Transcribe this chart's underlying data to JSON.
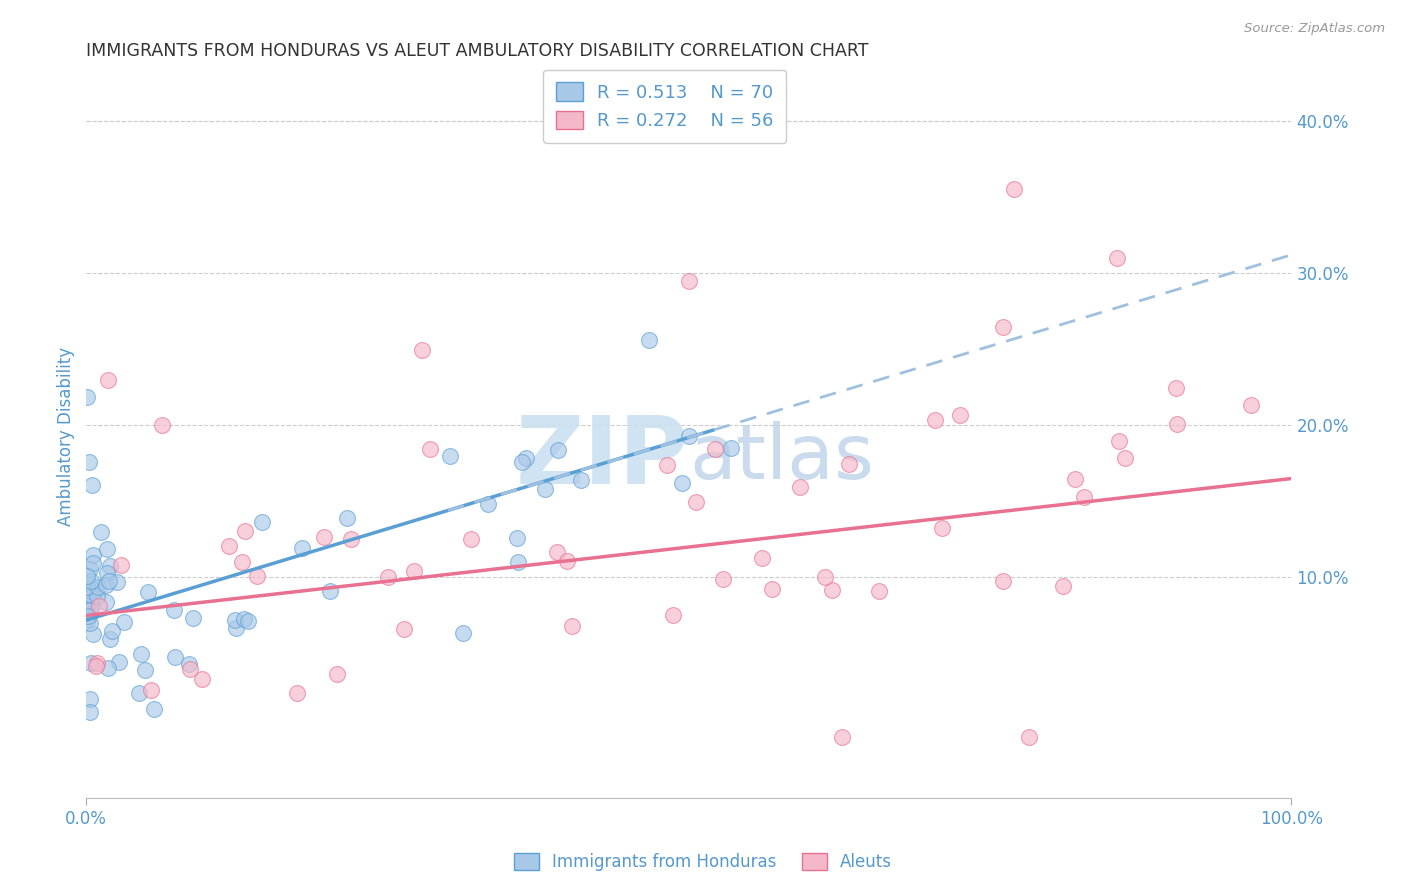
{
  "title": "IMMIGRANTS FROM HONDURAS VS ALEUT AMBULATORY DISABILITY CORRELATION CHART",
  "source": "Source: ZipAtlas.com",
  "ylabel": "Ambulatory Disability",
  "xlim": [
    0.0,
    1.0
  ],
  "ylim": [
    -0.045,
    0.43
  ],
  "color_blue_fill": "#a8c8e8",
  "color_blue_edge": "#5a9fd4",
  "color_pink_fill": "#f4b8c8",
  "color_pink_edge": "#e87090",
  "color_trendline_blue_solid": "#5a9fd4",
  "color_trendline_blue_dash": "#a0c0e0",
  "color_trendline_pink": "#e87090",
  "color_grid": "#cccccc",
  "color_title": "#333333",
  "color_axis_blue": "#5599cc",
  "color_watermark": "#c8dff0",
  "background_color": "#ffffff",
  "legend_r1": "R = 0.513",
  "legend_n1": "N = 70",
  "legend_r2": "R = 0.272",
  "legend_n2": "N = 56",
  "ytick_vals": [
    0.0,
    0.1,
    0.2,
    0.3,
    0.4
  ],
  "ytick_labels": [
    "",
    "10.0%",
    "20.0%",
    "30.0%",
    "40.0%"
  ],
  "xtick_vals": [
    0.0,
    1.0
  ],
  "xtick_labels": [
    "0.0%",
    "100.0%"
  ]
}
